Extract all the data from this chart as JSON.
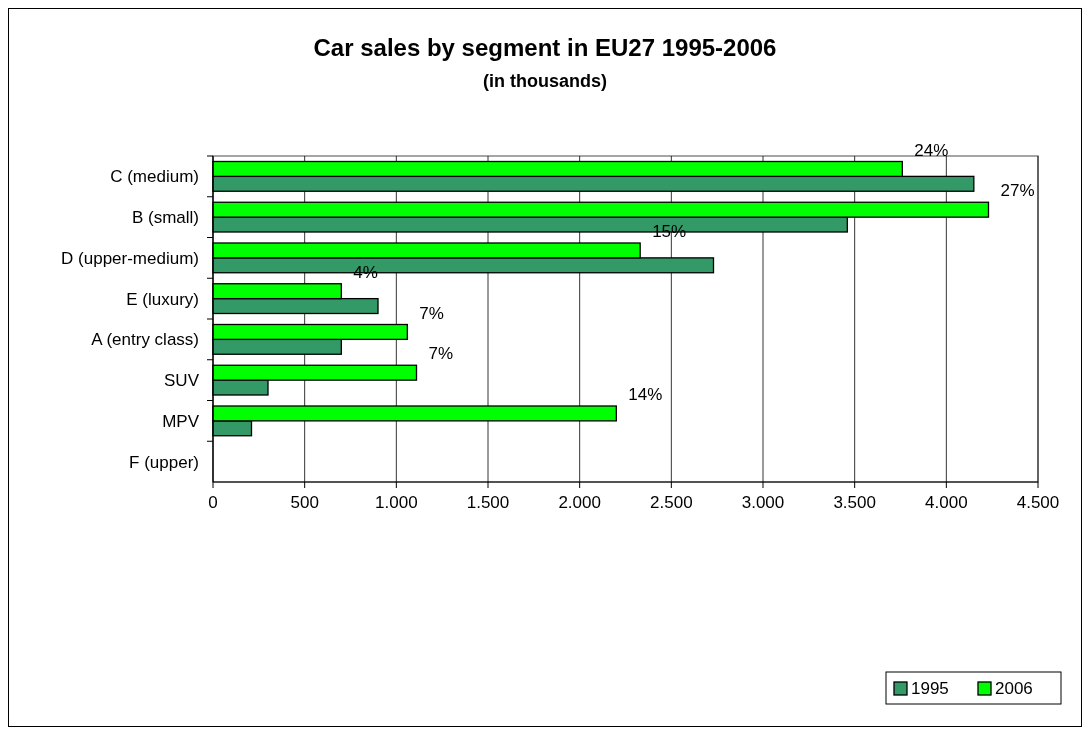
{
  "chart_data": {
    "type": "bar",
    "orientation": "horizontal",
    "title": "Car sales by segment in EU27 1995-2006",
    "subtitle": "(in thousands)",
    "categories": [
      "C (medium)",
      "B (small)",
      "D (upper-medium)",
      "E (luxury)",
      "A (entry class)",
      "SUV",
      "MPV",
      "F (upper)"
    ],
    "series": [
      {
        "name": "1995",
        "color": "#339966",
        "values": [
          4150,
          3460,
          2730,
          900,
          700,
          300,
          210,
          null
        ]
      },
      {
        "name": "2006",
        "color": "#00ff00",
        "values": [
          3760,
          4230,
          2330,
          700,
          1060,
          1110,
          2200,
          null
        ]
      }
    ],
    "annotations": [
      {
        "text": "24%",
        "x": 3760,
        "y": "C (medium)"
      },
      {
        "text": "27%",
        "x": 4230,
        "y": "B (small)"
      },
      {
        "text": "15%",
        "x": 2330,
        "y": "D (upper-medium)"
      },
      {
        "text": "4%",
        "x": 700,
        "y": "E (luxury)"
      },
      {
        "text": "7%",
        "x": 1060,
        "y": "A (entry class)"
      },
      {
        "text": "7%",
        "x": 1110,
        "y": "SUV"
      },
      {
        "text": "14%",
        "x": 2200,
        "y": "MPV"
      }
    ],
    "xlim": [
      0,
      4500
    ],
    "xticks": [
      0,
      {
        "value": 500,
        "label": "500"
      },
      {
        "value": 1000,
        "label": "1.000"
      },
      {
        "value": 1500,
        "label": "1.500"
      },
      {
        "value": 2000,
        "label": "2.000"
      },
      {
        "value": 2500,
        "label": "2.500"
      },
      {
        "value": 3000,
        "label": "3.000"
      },
      {
        "value": 3500,
        "label": "3.500"
      },
      {
        "value": 4000,
        "label": "4.000"
      },
      {
        "value": 4500,
        "label": "4.500"
      }
    ],
    "grid": "x",
    "legend": "bottom right"
  }
}
